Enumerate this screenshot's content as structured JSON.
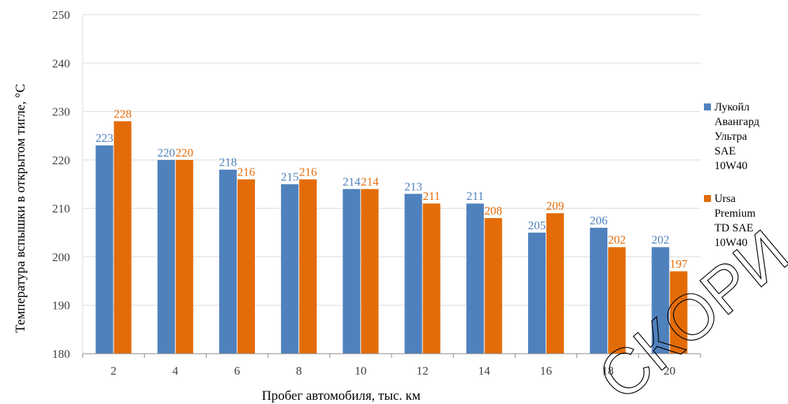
{
  "chart_data": {
    "type": "bar",
    "title": "",
    "xlabel": "Пробег автомобиля, тыс. км",
    "ylabel": "Температура вспышки в открытом тигле, °С",
    "categories": [
      "2",
      "4",
      "6",
      "8",
      "10",
      "12",
      "14",
      "16",
      "18",
      "20"
    ],
    "ylim": [
      180,
      250
    ],
    "yticks": [
      180,
      190,
      200,
      210,
      220,
      230,
      240,
      250
    ],
    "grid": true,
    "legend_position": "right",
    "series": [
      {
        "name": "Лукойл Авангард Ультра SAE 10W40",
        "legend_lines": [
          "Лукойл",
          "Авангард",
          "Ультра",
          "SAE",
          "10W40"
        ],
        "color": "#4f81bd",
        "label_color": "#4f81bd",
        "values": [
          223,
          220,
          218,
          215,
          214,
          213,
          211,
          205,
          206,
          202
        ]
      },
      {
        "name": "Ursa Premium TD SAE 10W40",
        "legend_lines": [
          "Ursa",
          "Premium",
          "TD SAE",
          "10W40"
        ],
        "color": "#e36c09",
        "label_color": "#e36c09",
        "values": [
          228,
          220,
          216,
          216,
          214,
          211,
          208,
          209,
          202,
          197
        ]
      }
    ]
  },
  "watermark": {
    "text": "СКОРИ"
  }
}
